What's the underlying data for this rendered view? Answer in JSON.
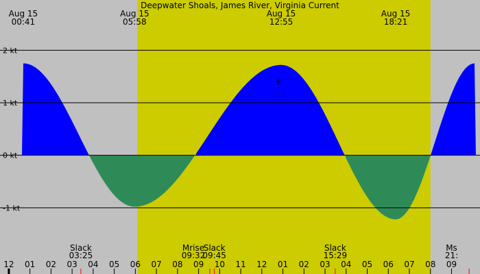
{
  "chart_data": {
    "type": "area",
    "title": "Deepwater Shoals, James River, Virginia Current",
    "unit": "kt",
    "xlim_hours": [
      -0.42,
      22.35
    ],
    "ylim": [
      -2.0,
      2.8
    ],
    "y_ticks": [
      {
        "value": 2,
        "label": "2 kt"
      },
      {
        "value": 1,
        "label": "1 kt"
      },
      {
        "value": 0,
        "label": "0 kt"
      },
      {
        "value": -1,
        "label": "-1 kt"
      }
    ],
    "daylight": {
      "start": "06:06",
      "end": "20:00"
    },
    "extremes": [
      {
        "date": "Aug 15",
        "time": "00:41",
        "value": 1.75
      },
      {
        "date": "Aug 15",
        "time": "05:58",
        "value": -0.98
      },
      {
        "date": "Aug 15",
        "time": "12:55",
        "value": 1.72
      },
      {
        "date": "Aug 15",
        "time": "18:21",
        "value": -1.22
      }
    ],
    "events": [
      {
        "label": "Slack",
        "time": "03:25"
      },
      {
        "label": "Mrise",
        "time": "09:32"
      },
      {
        "label": "Slack",
        "time": "09:45"
      },
      {
        "label": "Slack",
        "time": "15:29"
      },
      {
        "label": "Ms",
        "time": "21:"
      }
    ],
    "x_tick_labels": [
      "11",
      "12",
      "01",
      "02",
      "03",
      "04",
      "05",
      "06",
      "07",
      "08",
      "09",
      "10",
      "11",
      "12",
      "01",
      "02",
      "03",
      "04",
      "05",
      "06",
      "07",
      "08",
      "09"
    ],
    "x_tick_hours": [
      -1,
      0,
      1,
      2,
      3,
      4,
      5,
      6,
      7,
      8,
      9,
      10,
      11,
      12,
      13,
      14,
      15,
      16,
      17,
      18,
      19,
      20,
      21
    ],
    "marked_times": [
      "03:25",
      "09:32",
      "09:45",
      "15:29",
      "21:50"
    ],
    "colors": {
      "background": "#c0c0c0",
      "daylight": "#cccc00",
      "flood": "#0000ff",
      "ebb": "#2e8b57",
      "axis": "#000000",
      "marker": "#ff0000"
    }
  }
}
